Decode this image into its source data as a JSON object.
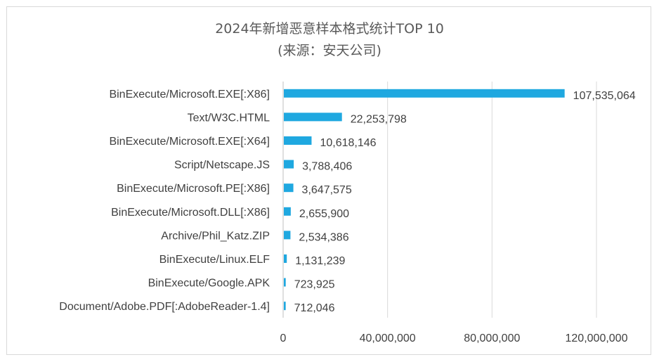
{
  "chart_data": {
    "type": "bar",
    "orientation": "horizontal",
    "title": "2024年新增恶意样本格式统计TOP 10",
    "subtitle": "(来源：安天公司)",
    "categories": [
      "BinExecute/Microsoft.EXE[:X86]",
      "Text/W3C.HTML",
      "BinExecute/Microsoft.EXE[:X64]",
      "Script/Netscape.JS",
      "BinExecute/Microsoft.PE[:X86]",
      "BinExecute/Microsoft.DLL[:X86]",
      "Archive/Phil_Katz.ZIP",
      "BinExecute/Linux.ELF",
      "BinExecute/Google.APK",
      "Document/Adobe.PDF[:AdobeReader-1.4]"
    ],
    "values": [
      107535064,
      22253798,
      10618146,
      3788406,
      3647575,
      2655900,
      2534386,
      1131239,
      723925,
      712046
    ],
    "value_labels": [
      "107,535,064",
      "22,253,798",
      "10,618,146",
      "3,788,406",
      "3,647,575",
      "2,655,900",
      "2,534,386",
      "1,131,239",
      "723,925",
      "712,046"
    ],
    "xlim": [
      0,
      120000000
    ],
    "xticks": [
      0,
      40000000,
      80000000,
      120000000
    ],
    "xtick_labels": [
      "0",
      "40,000,000",
      "80,000,000",
      "120,000,000"
    ],
    "grid": true,
    "legend": "none",
    "bar_color": "#1FA8E0"
  }
}
